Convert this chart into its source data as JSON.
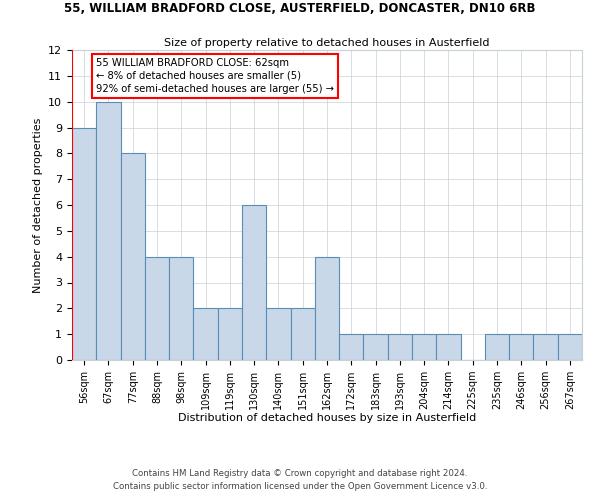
{
  "title": "55, WILLIAM BRADFORD CLOSE, AUSTERFIELD, DONCASTER, DN10 6RB",
  "subtitle": "Size of property relative to detached houses in Austerfield",
  "xlabel": "Distribution of detached houses by size in Austerfield",
  "ylabel": "Number of detached properties",
  "bar_labels": [
    "56sqm",
    "67sqm",
    "77sqm",
    "88sqm",
    "98sqm",
    "109sqm",
    "119sqm",
    "130sqm",
    "140sqm",
    "151sqm",
    "162sqm",
    "172sqm",
    "183sqm",
    "193sqm",
    "204sqm",
    "214sqm",
    "225sqm",
    "235sqm",
    "246sqm",
    "256sqm",
    "267sqm"
  ],
  "bar_values": [
    9,
    10,
    8,
    4,
    4,
    2,
    2,
    6,
    2,
    2,
    4,
    1,
    1,
    1,
    1,
    1,
    0,
    1,
    1,
    1,
    1
  ],
  "bar_color": "#c8d8e8",
  "bar_edge_color": "#5a8db5",
  "annotation_box_text": "55 WILLIAM BRADFORD CLOSE: 62sqm\n← 8% of detached houses are smaller (5)\n92% of semi-detached houses are larger (55) →",
  "ylim": [
    0,
    12
  ],
  "yticks": [
    0,
    1,
    2,
    3,
    4,
    5,
    6,
    7,
    8,
    9,
    10,
    11,
    12
  ],
  "grid_color": "#c8d0d8",
  "background_color": "#ffffff",
  "footnote1": "Contains HM Land Registry data © Crown copyright and database right 2024.",
  "footnote2": "Contains public sector information licensed under the Open Government Licence v3.0."
}
